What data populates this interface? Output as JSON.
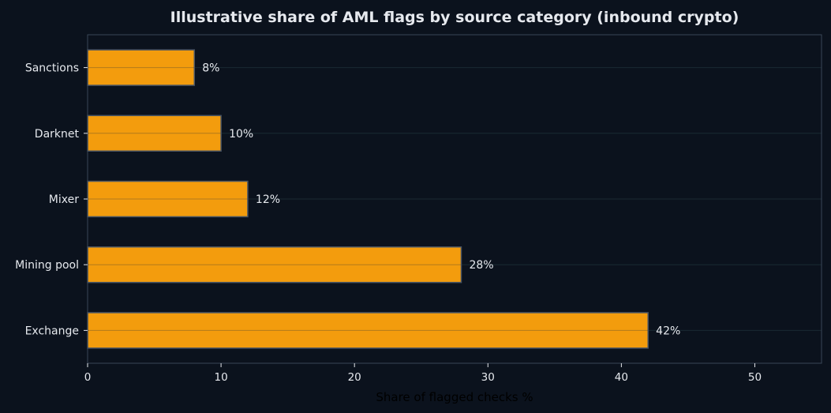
{
  "chart_data": {
    "type": "bar",
    "orientation": "horizontal",
    "title": "Illustrative share of AML flags by source category (inbound crypto)",
    "xlabel": "Share of flagged checks %",
    "ylabel": "",
    "categories": [
      "Exchange",
      "Mining pool",
      "Mixer",
      "Darknet",
      "Sanctions"
    ],
    "values": [
      42,
      28,
      12,
      10,
      8
    ],
    "value_labels": [
      "42%",
      "28%",
      "12%",
      "10%",
      "8%"
    ],
    "xlim": [
      0,
      55
    ],
    "xticks": [
      0,
      10,
      20,
      30,
      40,
      50
    ],
    "xtick_labels": [
      "0",
      "10",
      "20",
      "30",
      "40",
      "50"
    ],
    "grid": "horizontal",
    "legend": "none",
    "colors": {
      "background": "#0b121d",
      "bar_fill": "#f39c0d",
      "bar_edge": "#4a5563",
      "text": "#e6e9ee",
      "axis_title": "#000000",
      "spine": "#3a4656",
      "grid": "#1b2a33"
    }
  }
}
